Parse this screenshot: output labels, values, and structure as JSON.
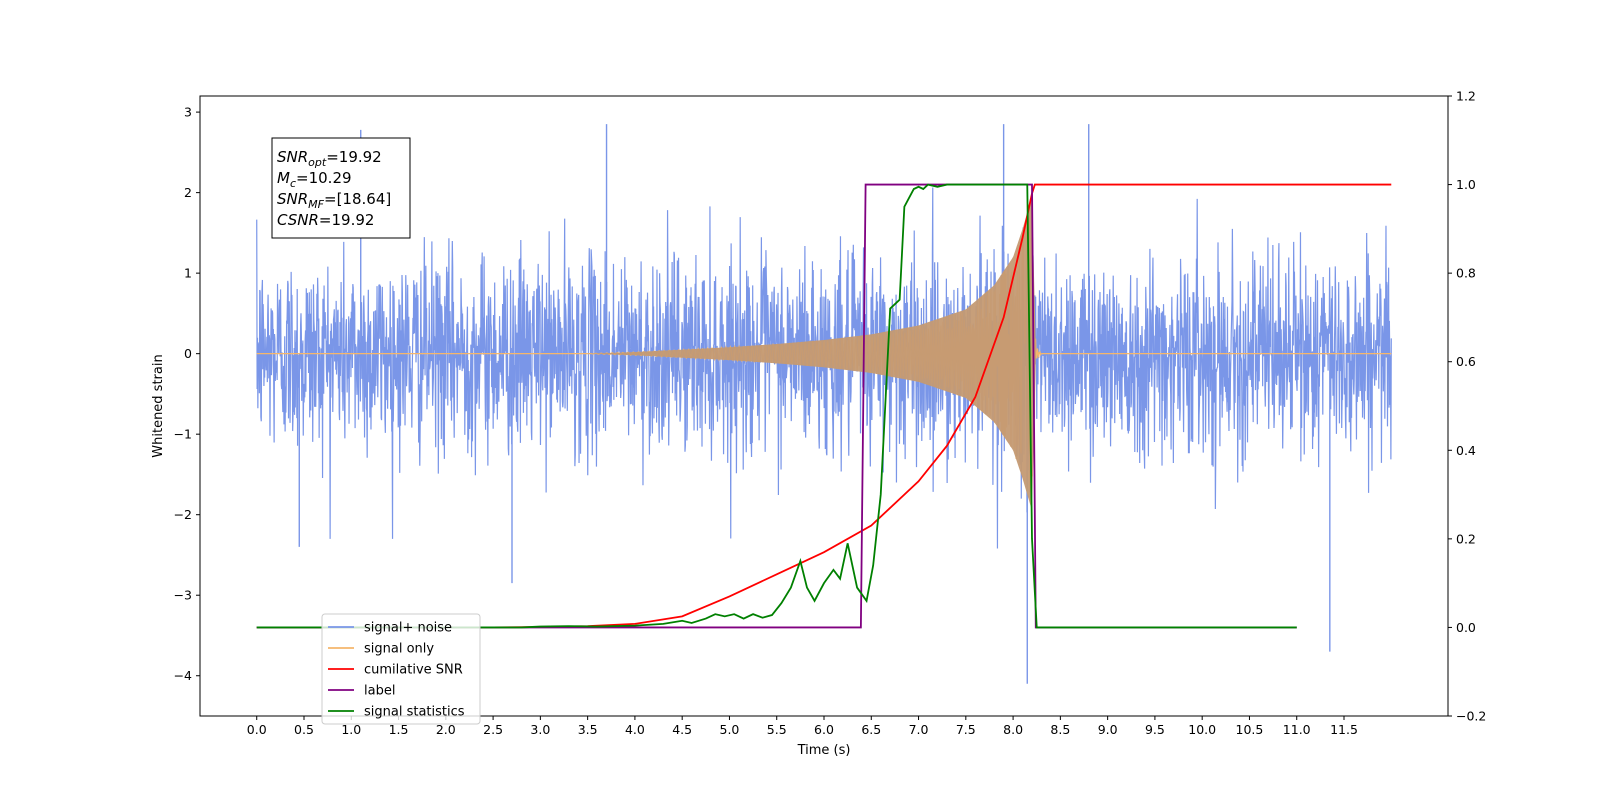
{
  "chart_data": {
    "type": "line",
    "xlabel": "Time (s)",
    "ylabel": "Whitened strain",
    "xlim": [
      -0.6,
      12.6
    ],
    "ylim": [
      -4.5,
      3.2
    ],
    "y2lim": [
      -0.2,
      1.2
    ],
    "x_ticks": [
      0.0,
      0.5,
      1.0,
      1.5,
      2.0,
      2.5,
      3.0,
      3.5,
      4.0,
      4.5,
      5.0,
      5.5,
      6.0,
      6.5,
      7.0,
      7.5,
      8.0,
      8.5,
      9.0,
      9.5,
      10.0,
      10.5,
      11.0,
      11.5
    ],
    "x_tick_labels": [
      "0.0",
      "0.5",
      "1.0",
      "1.5",
      "2.0",
      "2.5",
      "3.0",
      "3.5",
      "4.0",
      "4.5",
      "5.0",
      "5.5",
      "6.0",
      "6.5",
      "7.0",
      "7.5",
      "8.0",
      "8.5",
      "9.0",
      "9.5",
      "10.0",
      "10.5",
      "11.0",
      "11.5"
    ],
    "y_ticks": [
      -4,
      -3,
      -2,
      -1,
      0,
      1,
      2,
      3
    ],
    "y_tick_labels": [
      "−4",
      "−3",
      "−2",
      "−1",
      "0",
      "1",
      "2",
      "3"
    ],
    "y2_ticks": [
      -0.2,
      0.0,
      0.2,
      0.4,
      0.6,
      0.8,
      1.0,
      1.2
    ],
    "y2_tick_labels": [
      "−0.2",
      "0.0",
      "0.2",
      "0.4",
      "0.6",
      "0.8",
      "1.0",
      "1.2"
    ],
    "grid": false,
    "legend_position": "lower-left",
    "annotation": [
      {
        "var": "SNR",
        "sub": "opt",
        "value": "=19.92"
      },
      {
        "var": "M",
        "sub": "c",
        "value": "=10.29"
      },
      {
        "var": "SNR",
        "sub": "MF",
        "value": "=[18.64]"
      },
      {
        "var": "CSNR",
        "sub": "",
        "value": "=19.92"
      }
    ],
    "series": [
      {
        "name": "signal+ noise",
        "axis": "left",
        "color": "#7a96e8",
        "x_range": [
          0.0,
          12.0
        ],
        "noise_std": 0.6,
        "y_extremes": [
          {
            "x": 1.1,
            "y": 2.78
          },
          {
            "x": 3.7,
            "y": 2.85
          },
          {
            "x": 7.9,
            "y": 2.85
          },
          {
            "x": 8.8,
            "y": 2.85
          },
          {
            "x": 8.15,
            "y": -4.1
          },
          {
            "x": 11.35,
            "y": -3.7
          },
          {
            "x": 2.7,
            "y": -2.85
          },
          {
            "x": 0.45,
            "y": -2.4
          }
        ]
      },
      {
        "name": "signal only",
        "axis": "left",
        "color": "#f5b66b",
        "x_range": [
          0.0,
          12.0
        ],
        "envelope": [
          [
            3.5,
            0.0
          ],
          [
            4.0,
            0.02
          ],
          [
            4.5,
            0.05
          ],
          [
            5.0,
            0.08
          ],
          [
            5.5,
            0.12
          ],
          [
            6.0,
            0.17
          ],
          [
            6.5,
            0.24
          ],
          [
            7.0,
            0.35
          ],
          [
            7.5,
            0.55
          ],
          [
            7.8,
            0.85
          ],
          [
            8.0,
            1.2
          ],
          [
            8.1,
            1.55
          ],
          [
            8.2,
            1.95
          ],
          [
            8.24,
            0.1
          ],
          [
            8.3,
            0.0
          ]
        ]
      },
      {
        "name": "cumilative SNR",
        "axis": "right",
        "color": "#ff0000",
        "x": [
          0.0,
          2.5,
          3.0,
          3.5,
          4.0,
          4.5,
          5.0,
          5.5,
          6.0,
          6.5,
          7.0,
          7.3,
          7.6,
          7.9,
          8.1,
          8.2,
          8.23,
          12.0
        ],
        "values": [
          0.0,
          0.0,
          0.001,
          0.003,
          0.008,
          0.025,
          0.07,
          0.12,
          0.17,
          0.23,
          0.33,
          0.41,
          0.52,
          0.7,
          0.88,
          0.98,
          1.0,
          1.0
        ]
      },
      {
        "name": "label",
        "axis": "right",
        "color": "#800080",
        "x": [
          0.0,
          6.39,
          6.44,
          8.2,
          8.24,
          11.0
        ],
        "values": [
          0.0,
          0.0,
          1.0,
          1.0,
          0.0,
          0.0
        ]
      },
      {
        "name": "signal statistics",
        "axis": "right",
        "color": "#008000",
        "x": [
          0.0,
          2.8,
          3.0,
          3.3,
          3.6,
          4.0,
          4.3,
          4.5,
          4.6,
          4.75,
          4.85,
          4.95,
          5.05,
          5.15,
          5.25,
          5.35,
          5.45,
          5.55,
          5.65,
          5.75,
          5.82,
          5.9,
          6.0,
          6.1,
          6.17,
          6.25,
          6.35,
          6.45,
          6.52,
          6.6,
          6.7,
          6.8,
          6.85,
          6.9,
          6.95,
          7.0,
          7.05,
          7.1,
          7.2,
          7.3,
          7.4,
          7.5,
          7.6,
          8.0,
          8.15,
          8.2,
          8.25,
          11.0
        ],
        "values": [
          0.0,
          0.0,
          0.002,
          0.003,
          0.002,
          0.004,
          0.008,
          0.015,
          0.01,
          0.02,
          0.03,
          0.025,
          0.03,
          0.02,
          0.03,
          0.022,
          0.028,
          0.055,
          0.09,
          0.15,
          0.09,
          0.06,
          0.1,
          0.13,
          0.11,
          0.19,
          0.09,
          0.06,
          0.14,
          0.3,
          0.72,
          0.74,
          0.95,
          0.97,
          0.99,
          0.995,
          0.99,
          1.0,
          0.995,
          1.0,
          1.0,
          1.0,
          1.0,
          1.0,
          1.0,
          0.2,
          0.0,
          0.0
        ]
      }
    ],
    "legend": [
      {
        "label": "signal+ noise",
        "color": "#7a96e8"
      },
      {
        "label": "signal only",
        "color": "#f5b66b"
      },
      {
        "label": "cumilative SNR",
        "color": "#ff0000"
      },
      {
        "label": "label",
        "color": "#800080"
      },
      {
        "label": "signal statistics",
        "color": "#008000"
      }
    ]
  }
}
